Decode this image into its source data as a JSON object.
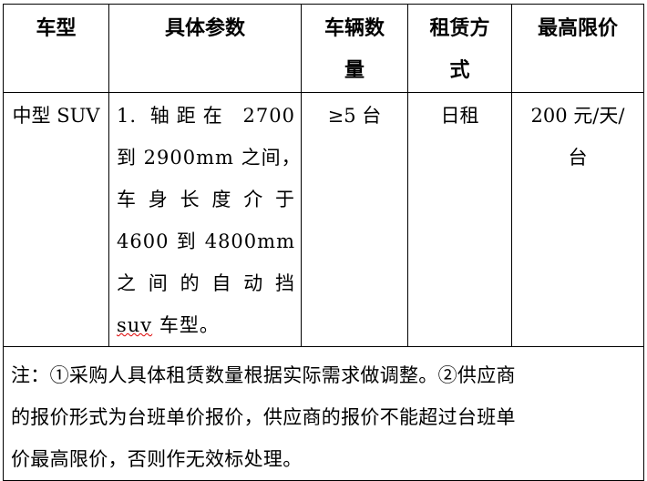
{
  "table": {
    "headers": [
      "车型",
      "具体参数",
      [
        "车辆数",
        "量"
      ],
      [
        "租赁方",
        "式"
      ],
      "最高限价"
    ],
    "row": {
      "model": "中型 SUV",
      "params_lines": [
        "1. 轴距在 2700",
        "到 2900mm 之间，",
        "车身长度介于",
        "4600 到 4800mm",
        "之间的自动挡"
      ],
      "params_last_word": "suv",
      "params_last_rest": " 车型。",
      "quantity": "≥5 台",
      "rental_mode": "日租",
      "price_lines": [
        "200 元/天/",
        "台"
      ]
    },
    "note_lines": [
      "注：①采购人具体租赁数量根据实际需求做调整。②供应商",
      "的报价形式为台班单价报价，供应商的报价不能超过台班单",
      "价最高限价，否则作无效标处理。"
    ]
  }
}
